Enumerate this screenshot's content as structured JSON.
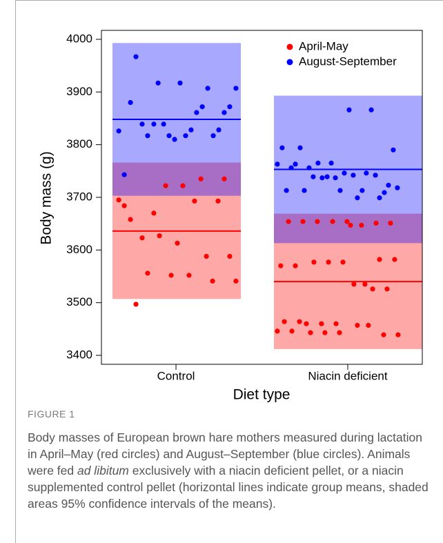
{
  "chart_data": {
    "type": "strip",
    "x_label": "Diet type",
    "y_label": "Body mass (g)",
    "xlim": [
      0.566,
      2.434
    ],
    "xticks": [
      {
        "value": 1,
        "label": "Control"
      },
      {
        "value": 2,
        "label": "Niacin deficient"
      }
    ],
    "ylim": [
      3383,
      4017
    ],
    "yticks": [
      3400,
      3500,
      3600,
      3700,
      3800,
      3900,
      4000
    ],
    "legend": "top-right",
    "series": [
      {
        "name": "April-May",
        "color": "#ff0000",
        "groups": [
          {
            "mean": 3636,
            "ci": [
              3507,
              3766
            ],
            "x": [
              0.667,
              0.699,
              0.735,
              0.767,
              0.803,
              0.835,
              0.871,
              0.904,
              0.94,
              0.972,
              1.008,
              1.04,
              1.076,
              1.108,
              1.145,
              1.177,
              1.213,
              1.245,
              1.281,
              1.313,
              1.349
            ],
            "values": [
              3695,
              3684,
              3658,
              3497,
              3623,
              3556,
              3670,
              3627,
              3722,
              3552,
              3613,
              3722,
              3552,
              3693,
              3735,
              3588,
              3541,
              3693,
              3735,
              3588,
              3541
            ]
          },
          {
            "mean": 3540,
            "ci": [
              3412,
              3669
            ],
            "x": [
              1.59,
              1.61,
              1.631,
              1.655,
              1.675,
              1.695,
              1.719,
              1.739,
              1.759,
              1.783,
              1.803,
              1.823,
              1.847,
              1.867,
              1.888,
              1.912,
              1.932,
              1.952,
              1.972,
              1.996,
              2.016,
              2.036,
              2.056,
              2.08,
              2.1,
              2.12,
              2.145,
              2.165,
              2.185,
              2.209,
              2.229,
              2.249,
              2.273,
              2.293
            ],
            "values": [
              3446,
              3570,
              3464,
              3654,
              3446,
              3570,
              3464,
              3654,
              3460,
              3443,
              3577,
              3654,
              3460,
              3443,
              3577,
              3654,
              3460,
              3443,
              3577,
              3654,
              3647,
              3535,
              3457,
              3647,
              3535,
              3457,
              3526,
              3651,
              3582,
              3439,
              3526,
              3651,
              3582,
              3439
            ]
          }
        ]
      },
      {
        "name": "August-September",
        "color": "#0000ff",
        "groups": [
          {
            "mean": 3848,
            "ci": [
              3703,
              3993
            ],
            "x": [
              0.667,
              0.699,
              0.735,
              0.767,
              0.803,
              0.835,
              0.871,
              0.896,
              0.928,
              0.96,
              0.992,
              1.024,
              1.056,
              1.088,
              1.12,
              1.153,
              1.185,
              1.217,
              1.249,
              1.281,
              1.313,
              1.349
            ],
            "values": [
              3826,
              3743,
              3880,
              3967,
              3839,
              3817,
              3839,
              3917,
              3839,
              3817,
              3810,
              3917,
              3817,
              3828,
              3861,
              3872,
              3907,
              3817,
              3828,
              3861,
              3872,
              3907
            ]
          },
          {
            "mean": 3753,
            "ci": [
              3613,
              3893
            ],
            "x": [
              1.59,
              1.618,
              1.643,
              1.671,
              1.695,
              1.723,
              1.747,
              1.775,
              1.799,
              1.827,
              1.851,
              1.88,
              1.904,
              1.928,
              1.956,
              1.98,
              2.008,
              2.032,
              2.056,
              2.084,
              2.108,
              2.137,
              2.161,
              2.185,
              2.213,
              2.237,
              2.265,
              2.289
            ],
            "values": [
              3763,
              3794,
              3713,
              3756,
              3763,
              3794,
              3713,
              3756,
              3739,
              3765,
              3737,
              3739,
              3765,
              3737,
              3713,
              3746,
              3866,
              3742,
              3699,
              3713,
              3746,
              3866,
              3742,
              3699,
              3709,
              3723,
              3790,
              3718
            ]
          }
        ]
      }
    ]
  },
  "figure": {
    "label": "FIGURE 1",
    "caption": [
      "Body masses of European brown hare mothers measured during lactation in April–May (red circles) and August–September (blue circles). Animals were fed ",
      "ad libitum",
      " exclusively with a niacin deficient pellet, or a niacin supplemented control pellet (horizontal lines indicate group means, shaded areas 95% confidence intervals of the means)."
    ]
  }
}
